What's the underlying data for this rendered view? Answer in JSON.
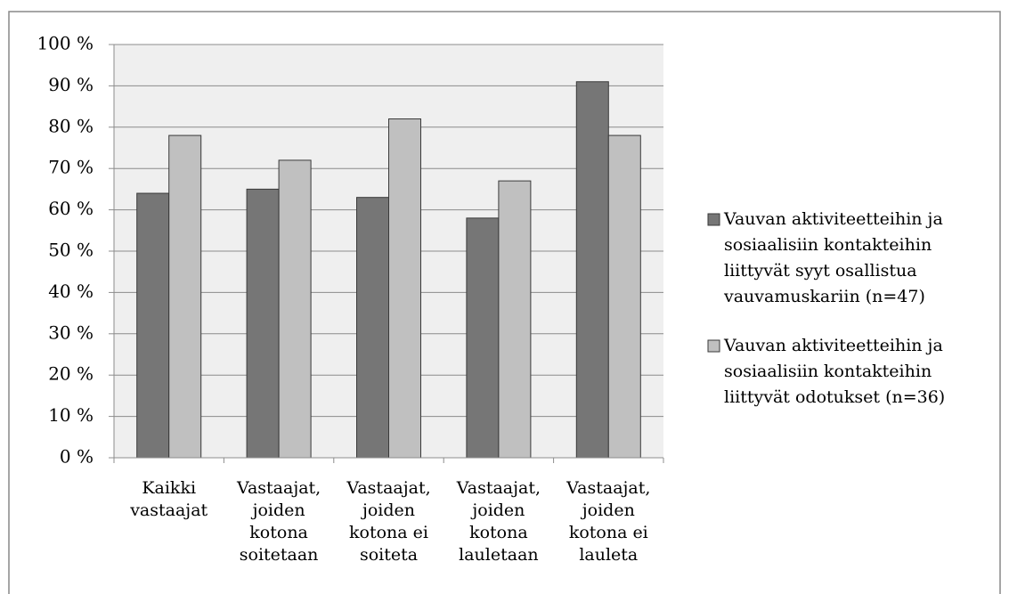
{
  "chart_data": {
    "type": "bar",
    "categories": [
      "Kaikki vastaajat",
      "Vastaajat, joiden kotona soitetaan",
      "Vastaajat, joiden kotona ei soiteta",
      "Vastaajat, joiden kotona lauletaan",
      "Vastaajat, joiden kotona ei lauleta"
    ],
    "series": [
      {
        "name": "Vauvan aktiviteetteihin ja sosiaalisiin kontakteihin liittyvät syyt osallistua vauvamuskariin (n=47)",
        "color": "#767676",
        "values": [
          64,
          65,
          63,
          58,
          91
        ]
      },
      {
        "name": "Vauvan aktiviteetteihin ja sosiaalisiin kontakteihin liittyvät odotukset (n=36)",
        "color": "#c0c0c0",
        "values": [
          78,
          72,
          82,
          67,
          78
        ]
      }
    ],
    "ylim": [
      0,
      100
    ],
    "yticks": [
      {
        "value": 0,
        "label": "0 %"
      },
      {
        "value": 10,
        "label": "10 %"
      },
      {
        "value": 20,
        "label": "20 %"
      },
      {
        "value": 30,
        "label": "30 %"
      },
      {
        "value": 40,
        "label": "40 %"
      },
      {
        "value": 50,
        "label": "50 %"
      },
      {
        "value": 60,
        "label": "60 %"
      },
      {
        "value": 70,
        "label": "70 %"
      },
      {
        "value": 80,
        "label": "80 %"
      },
      {
        "value": 90,
        "label": "90 %"
      },
      {
        "value": 100,
        "label": "100 %"
      }
    ],
    "grid": true,
    "legend": "right"
  }
}
